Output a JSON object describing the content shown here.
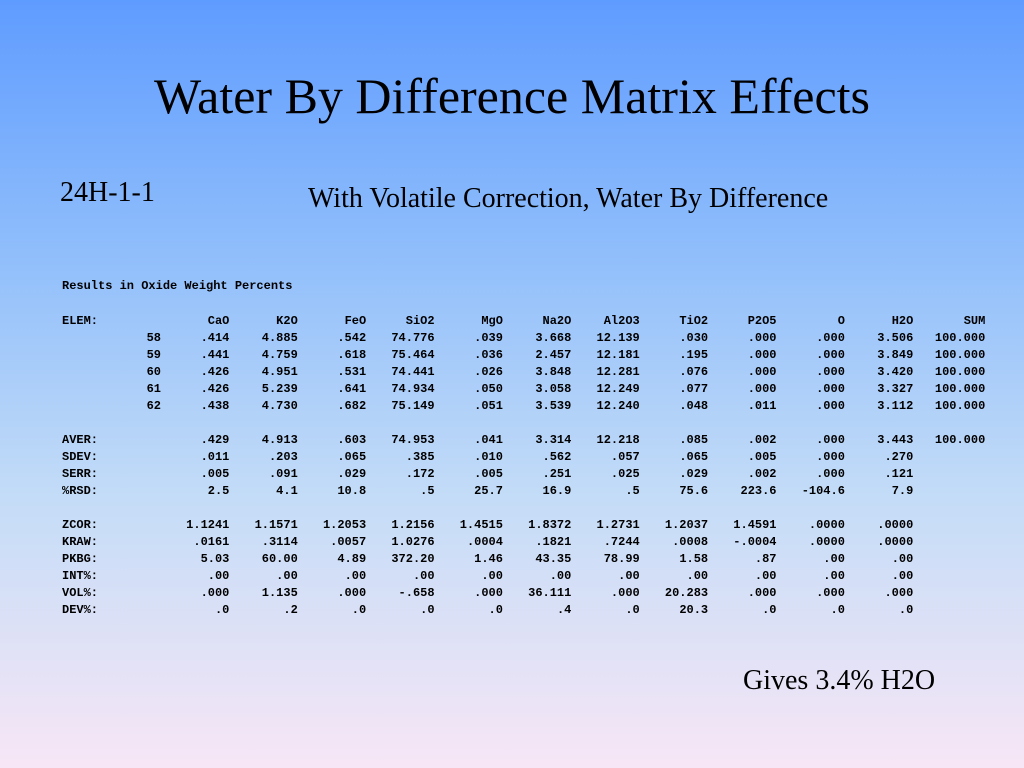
{
  "title": "Water By Difference Matrix Effects",
  "sample_id": "24H-1-1",
  "subtitle": "With Volatile Correction, Water By Difference",
  "results_heading": "Results in Oxide Weight Percents",
  "table": {
    "elem_label": "ELEM:",
    "columns": [
      "CaO",
      "K2O",
      "FeO",
      "SiO2",
      "MgO",
      "Na2O",
      "Al2O3",
      "TiO2",
      "P2O5",
      "O",
      "H2O",
      "SUM"
    ],
    "rows": [
      {
        "id": "58",
        "values": [
          ".414",
          "4.885",
          ".542",
          "74.776",
          ".039",
          "3.668",
          "12.139",
          ".030",
          ".000",
          ".000",
          "3.506",
          "100.000"
        ]
      },
      {
        "id": "59",
        "values": [
          ".441",
          "4.759",
          ".618",
          "75.464",
          ".036",
          "2.457",
          "12.181",
          ".195",
          ".000",
          ".000",
          "3.849",
          "100.000"
        ]
      },
      {
        "id": "60",
        "values": [
          ".426",
          "4.951",
          ".531",
          "74.441",
          ".026",
          "3.848",
          "12.281",
          ".076",
          ".000",
          ".000",
          "3.420",
          "100.000"
        ]
      },
      {
        "id": "61",
        "values": [
          ".426",
          "5.239",
          ".641",
          "74.934",
          ".050",
          "3.058",
          "12.249",
          ".077",
          ".000",
          ".000",
          "3.327",
          "100.000"
        ]
      },
      {
        "id": "62",
        "values": [
          ".438",
          "4.730",
          ".682",
          "75.149",
          ".051",
          "3.539",
          "12.240",
          ".048",
          ".011",
          ".000",
          "3.112",
          "100.000"
        ]
      }
    ],
    "stats": [
      {
        "label": "AVER:",
        "values": [
          ".429",
          "4.913",
          ".603",
          "74.953",
          ".041",
          "3.314",
          "12.218",
          ".085",
          ".002",
          ".000",
          "3.443",
          "100.000"
        ]
      },
      {
        "label": "SDEV:",
        "values": [
          ".011",
          ".203",
          ".065",
          ".385",
          ".010",
          ".562",
          ".057",
          ".065",
          ".005",
          ".000",
          ".270",
          ""
        ]
      },
      {
        "label": "SERR:",
        "values": [
          ".005",
          ".091",
          ".029",
          ".172",
          ".005",
          ".251",
          ".025",
          ".029",
          ".002",
          ".000",
          ".121",
          ""
        ]
      },
      {
        "label": "%RSD:",
        "values": [
          "2.5",
          "4.1",
          "10.8",
          ".5",
          "25.7",
          "16.9",
          ".5",
          "75.6",
          "223.6",
          "-104.6",
          "7.9",
          ""
        ]
      }
    ],
    "corrections": [
      {
        "label": "ZCOR:",
        "values": [
          "1.1241",
          "1.1571",
          "1.2053",
          "1.2156",
          "1.4515",
          "1.8372",
          "1.2731",
          "1.2037",
          "1.4591",
          ".0000",
          ".0000"
        ]
      },
      {
        "label": "KRAW:",
        "values": [
          ".0161",
          ".3114",
          ".0057",
          "1.0276",
          ".0004",
          ".1821",
          ".7244",
          ".0008",
          "-.0004",
          ".0000",
          ".0000"
        ]
      },
      {
        "label": "PKBG:",
        "values": [
          "5.03",
          "60.00",
          "4.89",
          "372.20",
          "1.46",
          "43.35",
          "78.99",
          "1.58",
          ".87",
          ".00",
          ".00"
        ]
      },
      {
        "label": "INT%:",
        "values": [
          ".00",
          ".00",
          ".00",
          ".00",
          ".00",
          ".00",
          ".00",
          ".00",
          ".00",
          ".00",
          ".00"
        ]
      },
      {
        "label": "VOL%:",
        "values": [
          ".000",
          "1.135",
          ".000",
          "-.658",
          ".000",
          "36.111",
          ".000",
          "20.283",
          ".000",
          ".000",
          ".000"
        ]
      },
      {
        "label": "DEV%:",
        "values": [
          ".0",
          ".2",
          ".0",
          ".0",
          ".0",
          ".4",
          ".0",
          "20.3",
          ".0",
          ".0",
          ".0"
        ]
      }
    ]
  },
  "footer": "Gives  3.4% H2O"
}
